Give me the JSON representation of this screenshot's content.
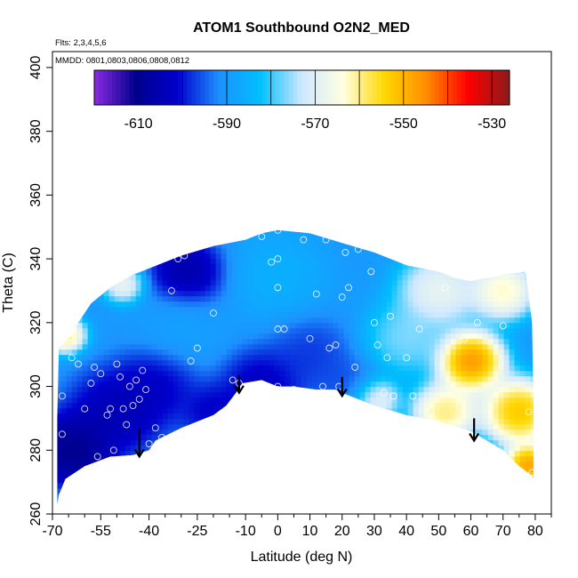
{
  "chart_data": {
    "type": "heatmap",
    "title": "ATOM1 Southbound O2N2_MED",
    "subtitle_lines": [
      "Flts: 2,3,4,5,6",
      "MMDD: 0801,0803,0806,0808,0812"
    ],
    "xlabel": "Latitude (deg N)",
    "ylabel": "Theta (C)",
    "xlim": [
      -70,
      85
    ],
    "ylim": [
      260,
      405
    ],
    "xticks": [
      -70,
      -55,
      -40,
      -25,
      -10,
      0,
      10,
      20,
      30,
      40,
      50,
      60,
      70,
      80
    ],
    "yticks": [
      260,
      280,
      300,
      320,
      340,
      360,
      380,
      400
    ],
    "colorbar": {
      "range": [
        -620,
        -526
      ],
      "ticks": [
        -610,
        -590,
        -570,
        -550,
        -530
      ],
      "colors": [
        "#8a2be2",
        "#00008b",
        "#0000cd",
        "#1e90ff",
        "#00bfff",
        "#cfe8ff",
        "#ffffe0",
        "#ffd700",
        "#ff8c00",
        "#ff0000",
        "#8b1a1a"
      ]
    },
    "shading": {
      "base_value": -590,
      "hotspots": [
        {
          "lat": -64,
          "theta": 280,
          "value": -618,
          "radius": 10
        },
        {
          "lat": -50,
          "theta": 292,
          "value": -610,
          "radius": 12
        },
        {
          "lat": -38,
          "theta": 300,
          "value": -606,
          "radius": 10
        },
        {
          "lat": -28,
          "theta": 336,
          "value": -612,
          "radius": 9
        },
        {
          "lat": -20,
          "theta": 292,
          "value": -606,
          "radius": 8
        },
        {
          "lat": -5,
          "theta": 300,
          "value": -608,
          "radius": 10
        },
        {
          "lat": 10,
          "theta": 310,
          "value": -600,
          "radius": 10
        },
        {
          "lat": 0,
          "theta": 335,
          "value": -584,
          "radius": 12
        },
        {
          "lat": 22,
          "theta": 300,
          "value": -598,
          "radius": 8
        },
        {
          "lat": -30,
          "theta": 318,
          "value": -588,
          "radius": 10
        },
        {
          "lat": 40,
          "theta": 315,
          "value": -572,
          "radius": 10
        },
        {
          "lat": 30,
          "theta": 296,
          "value": -558,
          "radius": 6
        },
        {
          "lat": 52,
          "theta": 292,
          "value": -548,
          "radius": 8
        },
        {
          "lat": 60,
          "theta": 308,
          "value": -530,
          "radius": 8
        },
        {
          "lat": 75,
          "theta": 292,
          "value": -538,
          "radius": 9
        },
        {
          "lat": 70,
          "theta": 330,
          "value": -552,
          "radius": 8
        },
        {
          "lat": 78,
          "theta": 275,
          "value": -532,
          "radius": 6
        },
        {
          "lat": -66,
          "theta": 316,
          "value": -548,
          "radius": 5
        },
        {
          "lat": -48,
          "theta": 332,
          "value": -560,
          "radius": 5
        },
        {
          "lat": 50,
          "theta": 330,
          "value": -560,
          "radius": 10
        }
      ]
    },
    "domain": {
      "bottom": [
        [
          -68.5,
          263
        ],
        [
          -68,
          266
        ],
        [
          -66,
          271
        ],
        [
          -60,
          275
        ],
        [
          -52,
          278
        ],
        [
          -45,
          278.5
        ],
        [
          -40,
          280
        ],
        [
          -38,
          283
        ],
        [
          -30,
          287
        ],
        [
          -20,
          291
        ],
        [
          -16,
          294
        ],
        [
          -13,
          298
        ],
        [
          -11,
          301
        ],
        [
          -5,
          302
        ],
        [
          0,
          300
        ],
        [
          5,
          300
        ],
        [
          12,
          299
        ],
        [
          18,
          299
        ],
        [
          20,
          298
        ],
        [
          25,
          296
        ],
        [
          30,
          294
        ],
        [
          40,
          291
        ],
        [
          50,
          289
        ],
        [
          60,
          286
        ],
        [
          70,
          280
        ],
        [
          75,
          275
        ],
        [
          79,
          272
        ],
        [
          79.5,
          271
        ]
      ],
      "top": [
        [
          -68.5,
          290
        ],
        [
          -68,
          312
        ],
        [
          -64,
          316
        ],
        [
          -62,
          320
        ],
        [
          -58,
          326
        ],
        [
          -52,
          331
        ],
        [
          -45,
          335
        ],
        [
          -40,
          337
        ],
        [
          -30,
          341
        ],
        [
          -20,
          344
        ],
        [
          -10,
          346
        ],
        [
          -5,
          348
        ],
        [
          0,
          349
        ],
        [
          10,
          348
        ],
        [
          20,
          345
        ],
        [
          30,
          342
        ],
        [
          40,
          338
        ],
        [
          50,
          336
        ],
        [
          55,
          334
        ],
        [
          60,
          333
        ],
        [
          70,
          335
        ],
        [
          77,
          336
        ],
        [
          79,
          320
        ],
        [
          79.5,
          293
        ]
      ]
    },
    "observations": [
      [
        -67,
        285
      ],
      [
        -67,
        297
      ],
      [
        -66,
        266
      ],
      [
        -64,
        309
      ],
      [
        -62,
        307
      ],
      [
        -60,
        293
      ],
      [
        -58,
        301
      ],
      [
        -57,
        306
      ],
      [
        -56,
        278
      ],
      [
        -55,
        304
      ],
      [
        -53,
        291
      ],
      [
        -52,
        293
      ],
      [
        -51,
        280
      ],
      [
        -50,
        307
      ],
      [
        -49,
        303
      ],
      [
        -48,
        293
      ],
      [
        -47,
        288
      ],
      [
        -46,
        300
      ],
      [
        -45,
        294
      ],
      [
        -44,
        302
      ],
      [
        -43,
        296
      ],
      [
        -42,
        305
      ],
      [
        -41,
        299
      ],
      [
        -40,
        282
      ],
      [
        -38,
        287
      ],
      [
        -36,
        284
      ],
      [
        -33,
        330
      ],
      [
        -31,
        340
      ],
      [
        -29,
        341
      ],
      [
        -27,
        308
      ],
      [
        -25,
        312
      ],
      [
        -20,
        323
      ],
      [
        -14,
        302
      ],
      [
        -12,
        301
      ],
      [
        -8,
        299
      ],
      [
        -5,
        347
      ],
      [
        -2,
        339
      ],
      [
        0,
        349
      ],
      [
        0,
        340
      ],
      [
        0,
        331
      ],
      [
        0,
        318
      ],
      [
        0,
        300
      ],
      [
        0,
        299
      ],
      [
        2,
        318
      ],
      [
        5,
        299
      ],
      [
        8,
        346
      ],
      [
        10,
        315
      ],
      [
        12,
        329
      ],
      [
        14,
        300
      ],
      [
        15,
        346
      ],
      [
        16,
        312
      ],
      [
        18,
        313
      ],
      [
        19,
        300
      ],
      [
        20,
        328
      ],
      [
        21,
        342
      ],
      [
        22,
        331
      ],
      [
        24,
        306
      ],
      [
        25,
        343
      ],
      [
        27,
        344
      ],
      [
        29,
        336
      ],
      [
        30,
        320
      ],
      [
        31,
        313
      ],
      [
        33,
        298
      ],
      [
        34,
        309
      ],
      [
        35,
        322
      ],
      [
        36,
        297
      ],
      [
        38,
        343
      ],
      [
        40,
        309
      ],
      [
        42,
        297
      ],
      [
        44,
        318
      ],
      [
        48,
        290
      ],
      [
        52,
        331
      ],
      [
        54,
        288
      ],
      [
        58,
        315
      ],
      [
        62,
        320
      ],
      [
        66,
        337
      ],
      [
        70,
        319
      ],
      [
        76,
        336
      ],
      [
        78,
        292
      ],
      [
        79,
        273
      ]
    ],
    "arrows": [
      {
        "lat": -43,
        "theta_top": 287,
        "theta_bottom": 278
      },
      {
        "lat": -12,
        "theta_top": 303.5,
        "theta_bottom": 298
      },
      {
        "lat": 20,
        "theta_top": 303,
        "theta_bottom": 297
      },
      {
        "lat": 61,
        "theta_top": 290,
        "theta_bottom": 283
      }
    ]
  }
}
